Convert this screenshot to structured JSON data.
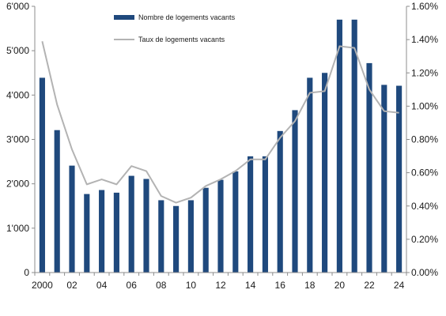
{
  "chart_data": {
    "type": "bar",
    "title": "",
    "xlabel": "",
    "ylabel": "",
    "x": [
      2000,
      2001,
      2002,
      2003,
      2004,
      2005,
      2006,
      2007,
      2008,
      2009,
      2010,
      2011,
      2012,
      2013,
      2014,
      2015,
      2016,
      2017,
      2018,
      2019,
      2020,
      2021,
      2022,
      2023,
      2024
    ],
    "x_tick_labels": [
      "2000",
      "02",
      "04",
      "06",
      "08",
      "10",
      "12",
      "14",
      "16",
      "18",
      "20",
      "22",
      "24"
    ],
    "x_tick_values": [
      2000,
      2002,
      2004,
      2006,
      2008,
      2010,
      2012,
      2014,
      2016,
      2018,
      2020,
      2022,
      2024
    ],
    "ylim": [
      0,
      6000
    ],
    "y_ticks": [
      0,
      1000,
      2000,
      3000,
      4000,
      5000,
      6000
    ],
    "y_tick_labels": [
      "0",
      "1'000",
      "2'000",
      "3'000",
      "4'000",
      "5'000",
      "6'000"
    ],
    "y2lim": [
      0,
      1.6
    ],
    "y2_ticks": [
      0,
      0.2,
      0.4,
      0.6,
      0.8,
      1.0,
      1.2,
      1.4,
      1.6
    ],
    "y2_tick_labels": [
      "0.00%",
      "0.20%",
      "0.40%",
      "0.60%",
      "0.80%",
      "1.00%",
      "1.20%",
      "1.40%",
      "1.60%"
    ],
    "grid": false,
    "legend_position": "top-center",
    "series": [
      {
        "name": "Nombre de logements vacants",
        "type": "bar",
        "axis": "left",
        "color": "#1f497d",
        "values": [
          4390,
          3210,
          2410,
          1770,
          1860,
          1800,
          2180,
          2110,
          1630,
          1500,
          1630,
          1910,
          2090,
          2280,
          2620,
          2620,
          3190,
          3660,
          4390,
          4500,
          5700,
          5700,
          4720,
          4230,
          4210
        ]
      },
      {
        "name": "Taux de logements vacants",
        "type": "line",
        "axis": "right",
        "color": "#b3b3b3",
        "values": [
          1.39,
          1.01,
          0.74,
          0.53,
          0.56,
          0.53,
          0.64,
          0.61,
          0.46,
          0.42,
          0.45,
          0.52,
          0.56,
          0.61,
          0.68,
          0.68,
          0.81,
          0.91,
          1.08,
          1.09,
          1.36,
          1.35,
          1.1,
          0.97,
          0.96
        ]
      }
    ]
  }
}
